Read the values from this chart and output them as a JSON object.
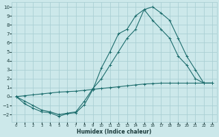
{
  "xlabel": "Humidex (Indice chaleur)",
  "ylabel": "",
  "bg_color": "#cce8ea",
  "grid_color": "#aacfd4",
  "line_color": "#1a6b6b",
  "line1_x": [
    0,
    1,
    2,
    3,
    4,
    5,
    6,
    7,
    8,
    9,
    10,
    11,
    12,
    13,
    14,
    15,
    16,
    17,
    18,
    19,
    20,
    21,
    22,
    23
  ],
  "line1_y": [
    0,
    -0.8,
    -1.3,
    -1.7,
    -1.8,
    -2.2,
    -1.9,
    -1.8,
    -0.9,
    0.8,
    3.2,
    5.0,
    7.0,
    7.5,
    9.0,
    9.7,
    10.0,
    9.3,
    8.5,
    6.5,
    4.5,
    3.0,
    1.5,
    1.5
  ],
  "line2_x": [
    0,
    1,
    2,
    3,
    4,
    5,
    6,
    7,
    8,
    9,
    10,
    11,
    12,
    13,
    14,
    15,
    16,
    17,
    18,
    19,
    20,
    21,
    22,
    23
  ],
  "line2_y": [
    0,
    -0.5,
    -1.0,
    -1.5,
    -1.7,
    -2.0,
    -1.85,
    -1.7,
    -0.5,
    0.9,
    2.0,
    3.5,
    5.0,
    6.5,
    7.5,
    9.7,
    8.5,
    7.5,
    6.5,
    4.5,
    3.5,
    2.0,
    1.5,
    1.5
  ],
  "line3_x": [
    0,
    1,
    2,
    3,
    4,
    5,
    6,
    7,
    8,
    9,
    10,
    11,
    12,
    13,
    14,
    15,
    16,
    17,
    18,
    19,
    20,
    21,
    22,
    23
  ],
  "line3_y": [
    0,
    0.1,
    0.2,
    0.3,
    0.4,
    0.5,
    0.55,
    0.6,
    0.7,
    0.8,
    0.9,
    1.0,
    1.1,
    1.2,
    1.3,
    1.4,
    1.45,
    1.5,
    1.5,
    1.5,
    1.5,
    1.5,
    1.5,
    1.5
  ],
  "ylim": [
    -2.8,
    10.5
  ],
  "xlim": [
    -0.5,
    23.5
  ],
  "yticks": [
    -2,
    -1,
    0,
    1,
    2,
    3,
    4,
    5,
    6,
    7,
    8,
    9,
    10
  ],
  "xticks": [
    0,
    1,
    2,
    3,
    4,
    5,
    6,
    7,
    8,
    9,
    10,
    11,
    12,
    13,
    14,
    15,
    16,
    17,
    18,
    19,
    20,
    21,
    22,
    23
  ]
}
